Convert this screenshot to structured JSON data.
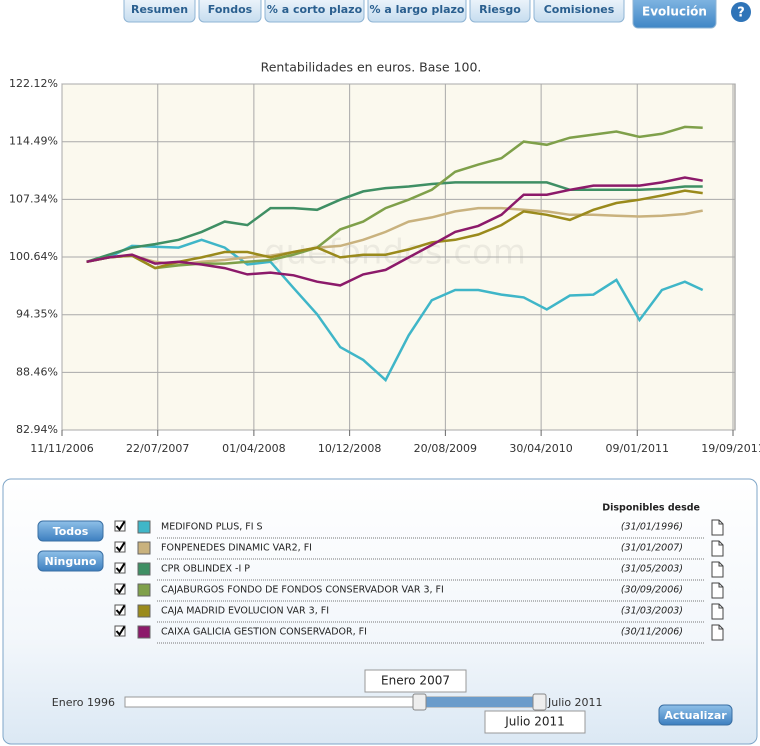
{
  "tabs": [
    "Resumen",
    "Fondos",
    "% a corto plazo",
    "% a largo plazo",
    "Riesgo",
    "Comisiones",
    "Evolución"
  ],
  "help": "?",
  "chart_data": {
    "type": "line",
    "title": "Rentabilidades en euros. Base 100.",
    "watermark": "quefondos.com",
    "log_scale": true,
    "grid": true,
    "xlim": [
      "2006-11-11",
      "2011-09-19"
    ],
    "xticks": [
      {
        "value": "2006-11-11",
        "label": "11/11/2006"
      },
      {
        "value": "2007-07-22",
        "label": "22/07/2007"
      },
      {
        "value": "2008-04-01",
        "label": "01/04/2008"
      },
      {
        "value": "2008-12-10",
        "label": "10/12/2008"
      },
      {
        "value": "2009-08-20",
        "label": "20/08/2009"
      },
      {
        "value": "2010-04-30",
        "label": "30/04/2010"
      },
      {
        "value": "2011-01-09",
        "label": "09/01/2011"
      },
      {
        "value": "2011-09-19",
        "label": "19/09/2011"
      }
    ],
    "ylim": [
      82.94,
      122.12
    ],
    "yticks": [
      {
        "value": 82.94,
        "label": "82.94%"
      },
      {
        "value": 88.46,
        "label": "88.46%"
      },
      {
        "value": 94.35,
        "label": "94.35%"
      },
      {
        "value": 100.64,
        "label": "100.64%"
      },
      {
        "value": 107.34,
        "label": "107.34%"
      },
      {
        "value": 114.49,
        "label": "114.49%"
      },
      {
        "value": 122.12,
        "label": "122.12%"
      }
    ],
    "x": [
      "2007-01-15",
      "2007-03-15",
      "2007-05-15",
      "2007-07-15",
      "2007-09-15",
      "2007-11-15",
      "2008-01-15",
      "2008-03-15",
      "2008-05-15",
      "2008-07-15",
      "2008-09-15",
      "2008-11-15",
      "2009-01-15",
      "2009-03-15",
      "2009-05-15",
      "2009-07-15",
      "2009-09-15",
      "2009-11-15",
      "2010-01-15",
      "2010-03-15",
      "2010-05-15",
      "2010-07-15",
      "2010-09-15",
      "2010-11-15",
      "2011-01-15",
      "2011-03-15",
      "2011-05-15",
      "2011-07-01"
    ],
    "series": [
      {
        "name": "MEDIFOND PLUS, FI S",
        "color": "#3fb6c8",
        "values": [
          100.1,
          100.6,
          101.9,
          101.8,
          101.7,
          102.6,
          101.7,
          99.8,
          100.1,
          97.2,
          94.4,
          91.0,
          89.7,
          87.7,
          92.2,
          95.9,
          97.0,
          97.0,
          96.5,
          96.2,
          94.9,
          96.4,
          96.5,
          98.1,
          93.8,
          97.0,
          97.9,
          97.0
        ]
      },
      {
        "name": "FONPENEDES DINAMIC VAR2, FI",
        "color": "#c9b27e",
        "values": [
          100.1,
          100.6,
          100.8,
          100.1,
          99.8,
          100.1,
          100.3,
          100.6,
          100.8,
          101.2,
          101.7,
          101.9,
          102.6,
          103.5,
          104.7,
          105.2,
          105.9,
          106.3,
          106.3,
          106.1,
          105.9,
          105.5,
          105.5,
          105.4,
          105.3,
          105.4,
          105.6,
          106.0
        ]
      },
      {
        "name": "CPR OBLINDEX -I P",
        "color": "#3f8f64",
        "values": [
          100.1,
          100.9,
          101.7,
          102.1,
          102.6,
          103.5,
          104.7,
          104.3,
          106.3,
          106.3,
          106.1,
          107.3,
          108.3,
          108.7,
          108.9,
          109.2,
          109.4,
          109.4,
          109.4,
          109.4,
          109.4,
          108.5,
          108.5,
          108.5,
          108.5,
          108.6,
          108.9,
          108.9
        ]
      },
      {
        "name": "CAJABURGOS FONDO DE FONDOS CONSERVADOR VAR 3, FI",
        "color": "#7fa04a",
        "values": [
          100.1,
          100.6,
          100.8,
          99.4,
          99.7,
          99.9,
          99.9,
          100.1,
          100.3,
          100.9,
          101.7,
          103.8,
          104.7,
          106.3,
          107.3,
          108.5,
          110.7,
          111.6,
          112.4,
          114.5,
          114.1,
          115.0,
          115.4,
          115.8,
          115.1,
          115.5,
          116.4,
          116.3
        ]
      },
      {
        "name": "CAJA MADRID EVOLUCION VAR 3, FI",
        "color": "#9a8a1c",
        "values": [
          100.1,
          100.6,
          100.8,
          99.4,
          100.1,
          100.6,
          101.2,
          101.2,
          100.6,
          101.2,
          101.7,
          100.6,
          100.9,
          100.9,
          101.5,
          102.3,
          102.6,
          103.2,
          104.3,
          105.9,
          105.5,
          104.9,
          106.1,
          106.9,
          107.3,
          107.8,
          108.4,
          108.1
        ]
      },
      {
        "name": "CAIXA GALICIA GESTION CONSERVADOR, FI",
        "color": "#8c1a6a",
        "values": [
          100.1,
          100.6,
          100.9,
          99.9,
          100.1,
          99.8,
          99.4,
          98.7,
          98.9,
          98.6,
          97.9,
          97.5,
          98.7,
          99.2,
          100.6,
          102.0,
          103.5,
          104.2,
          105.5,
          107.9,
          107.9,
          108.5,
          109.0,
          109.0,
          109.0,
          109.4,
          110.0,
          109.6
        ]
      }
    ]
  },
  "panel": {
    "buttons": [
      "Todos",
      "Ninguno"
    ],
    "since_header": "Disponibles desde",
    "since": [
      "(31/01/1996)",
      "(31/01/2007)",
      "(31/05/2003)",
      "(30/09/2006)",
      "(31/03/2003)",
      "(30/11/2006)"
    ],
    "slider": {
      "min_label": "Enero 1996",
      "max_label": "Julio 2011",
      "from": "Enero 2007",
      "to": "Julio 2011"
    },
    "update": "Actualizar"
  }
}
